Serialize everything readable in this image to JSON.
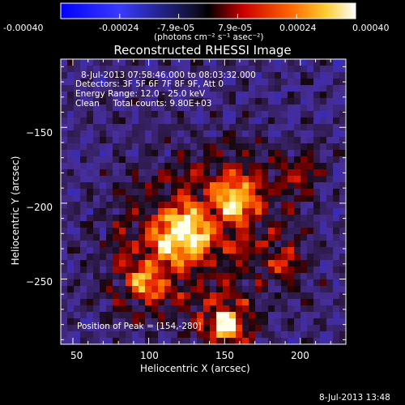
{
  "colorbar": {
    "tick_labels": [
      "-0.00040",
      "-0.00024",
      "-7.9e-05",
      "7.9e-05",
      "0.00024",
      "0.00040"
    ],
    "units_label": "(photons cm⁻² s⁻¹ asec⁻²)",
    "colormap": [
      "#0000ff",
      "#000000",
      "#cc0000",
      "#ff8800",
      "#ffff66",
      "#ffffff"
    ]
  },
  "title": "Reconstructed RHESSI Image",
  "info": {
    "time_range": "8-Jul-2013 07:58:46.000 to 08:03:32.000",
    "detectors": "Detectors: 3F 5F 6F 7F 8F 9F, Att 0",
    "energy_range": "Energy Range: 12.0 - 25.0 keV",
    "clean": "Clean     Total counts: 9.80E+03",
    "peak": "Position of Peak = [154,-280]"
  },
  "x_axis": {
    "title": "Heliocentric X (arcsec)",
    "ticks": [
      {
        "value": 50,
        "label": "50"
      },
      {
        "value": 100,
        "label": "100"
      },
      {
        "value": 150,
        "label": "150"
      },
      {
        "value": 200,
        "label": "200"
      }
    ],
    "range": [
      42,
      230
    ]
  },
  "y_axis": {
    "title": "Heliocentric Y (arcsec)",
    "ticks": [
      {
        "value": -150,
        "label": "−150"
      },
      {
        "value": -200,
        "label": "−200"
      },
      {
        "value": -250,
        "label": "−250"
      }
    ],
    "range": [
      -293,
      -105
    ]
  },
  "timestamp": "8-Jul-2013 13:48"
}
